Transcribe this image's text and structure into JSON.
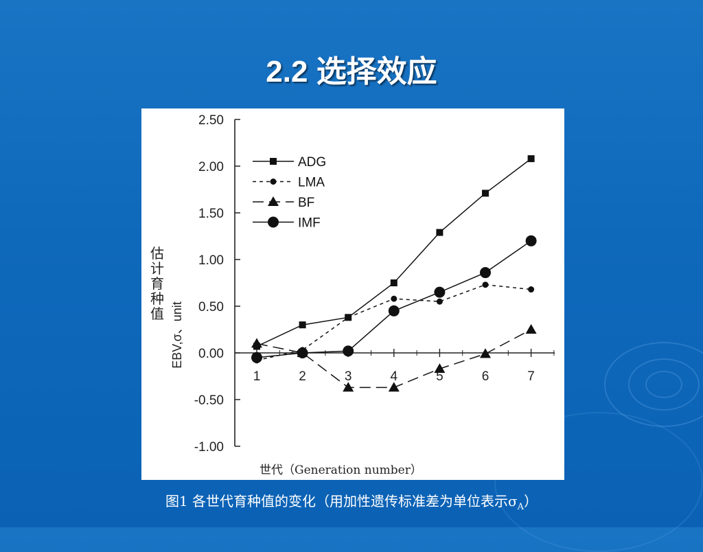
{
  "slide": {
    "title": "2.2 选择效应",
    "caption_text": "图1 各世代育种值的变化（用加性遗传标准差为单位表示σ",
    "caption_sub": "A",
    "caption_end": "）"
  },
  "colors": {
    "background": "#0f69bb",
    "title": "#ffffff"
  },
  "chart_data": {
    "type": "line",
    "x": [
      1,
      2,
      3,
      4,
      5,
      6,
      7
    ],
    "xlabel": "世代（Generation number）",
    "ylabel_cn": "估计育种值",
    "ylabel_en": "EBV,σ、unit",
    "ylim": [
      -1.0,
      2.5
    ],
    "yticks": [
      "2.50",
      "2.00",
      "1.50",
      "1.00",
      "0.50",
      "0.00",
      "-0.50",
      "-1.00"
    ],
    "xticks": [
      "1",
      "2",
      "3",
      "4",
      "5",
      "6",
      "7"
    ],
    "legend_position": "top-left",
    "grid": false,
    "series": [
      {
        "name": "ADG",
        "values": [
          0.07,
          0.3,
          0.38,
          0.75,
          1.29,
          1.71,
          2.08
        ],
        "marker": "square",
        "dash": "solid"
      },
      {
        "name": "LMA",
        "values": [
          -0.08,
          0.03,
          0.38,
          0.58,
          0.55,
          0.73,
          0.68
        ],
        "marker": "dot",
        "dash": "dashed"
      },
      {
        "name": "BF",
        "values": [
          0.1,
          0.0,
          -0.37,
          -0.37,
          -0.17,
          -0.01,
          0.25
        ],
        "marker": "triangle",
        "dash": "longdash"
      },
      {
        "name": "IMF",
        "values": [
          -0.05,
          0.0,
          0.02,
          0.45,
          0.65,
          0.86,
          1.2
        ],
        "marker": "circle",
        "dash": "solid"
      }
    ]
  }
}
